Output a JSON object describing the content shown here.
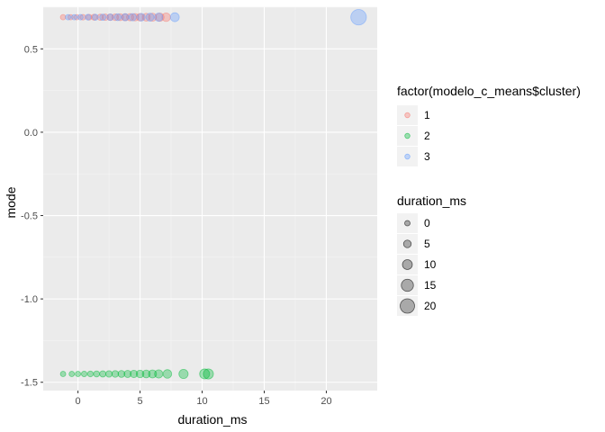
{
  "chart_data": {
    "type": "scatter",
    "xlabel": "duration_ms",
    "ylabel": "mode",
    "xlim": [
      -2.8,
      24.1
    ],
    "ylim": [
      -1.55,
      0.75
    ],
    "x_ticks": [
      0,
      5,
      10,
      15,
      20
    ],
    "x_tick_labels": [
      "0",
      "5",
      "10",
      "15",
      "20"
    ],
    "y_ticks": [
      0.5,
      0.0,
      -0.5,
      -1.0,
      -1.5
    ],
    "y_tick_labels": [
      "0.5",
      "0.0",
      "-0.5",
      "-1.0",
      "-1.5"
    ],
    "grid": true,
    "legend_placement": "right",
    "colors": {
      "panel": "#ebebeb",
      "grid_major": "#ffffff",
      "grid_minor": "#f5f5f5"
    },
    "color_legend": {
      "title": "factor(modelo_c_means$cluster)",
      "entries": [
        {
          "label": "1",
          "color": "#F8766D"
        },
        {
          "label": "2",
          "color": "#00BA38"
        },
        {
          "label": "3",
          "color": "#619CFF"
        }
      ]
    },
    "size_legend": {
      "title": "duration_ms",
      "entries": [
        {
          "label": "0",
          "value": 0
        },
        {
          "label": "5",
          "value": 5
        },
        {
          "label": "10",
          "value": 10
        },
        {
          "label": "15",
          "value": 15
        },
        {
          "label": "20",
          "value": 20
        }
      ]
    },
    "series": [
      {
        "name": "1",
        "color": "#F8766D",
        "x": [
          -1.2,
          -0.6,
          -0.1,
          0.4,
          0.9,
          1.3,
          1.8,
          2.2,
          2.6,
          3.0,
          3.4,
          3.8,
          4.2,
          4.6,
          5.0,
          5.5,
          6.0,
          6.6,
          7.1
        ],
        "y": [
          0.69,
          0.69,
          0.69,
          0.69,
          0.69,
          0.69,
          0.69,
          0.69,
          0.69,
          0.69,
          0.69,
          0.69,
          0.69,
          0.69,
          0.69,
          0.69,
          0.69,
          0.69,
          0.69
        ]
      },
      {
        "name": "2",
        "color": "#00BA38",
        "x": [
          -1.2,
          -0.5,
          0.0,
          0.5,
          1.0,
          1.5,
          2.0,
          2.5,
          3.0,
          3.5,
          4.0,
          4.5,
          5.0,
          5.5,
          6.0,
          6.5,
          7.2,
          8.5,
          10.2,
          10.5
        ],
        "y": [
          -1.45,
          -1.45,
          -1.45,
          -1.45,
          -1.45,
          -1.45,
          -1.45,
          -1.45,
          -1.45,
          -1.45,
          -1.45,
          -1.45,
          -1.45,
          -1.45,
          -1.45,
          -1.45,
          -1.45,
          -1.45,
          -1.45,
          -1.45
        ]
      },
      {
        "name": "3",
        "color": "#619CFF",
        "x": [
          -0.8,
          -0.3,
          0.2,
          0.8,
          1.4,
          2.0,
          2.6,
          3.2,
          3.8,
          4.4,
          5.1,
          5.8,
          6.5,
          7.8,
          22.6
        ],
        "y": [
          0.69,
          0.69,
          0.69,
          0.69,
          0.69,
          0.69,
          0.69,
          0.69,
          0.69,
          0.69,
          0.69,
          0.69,
          0.69,
          0.69,
          0.69
        ]
      }
    ]
  }
}
